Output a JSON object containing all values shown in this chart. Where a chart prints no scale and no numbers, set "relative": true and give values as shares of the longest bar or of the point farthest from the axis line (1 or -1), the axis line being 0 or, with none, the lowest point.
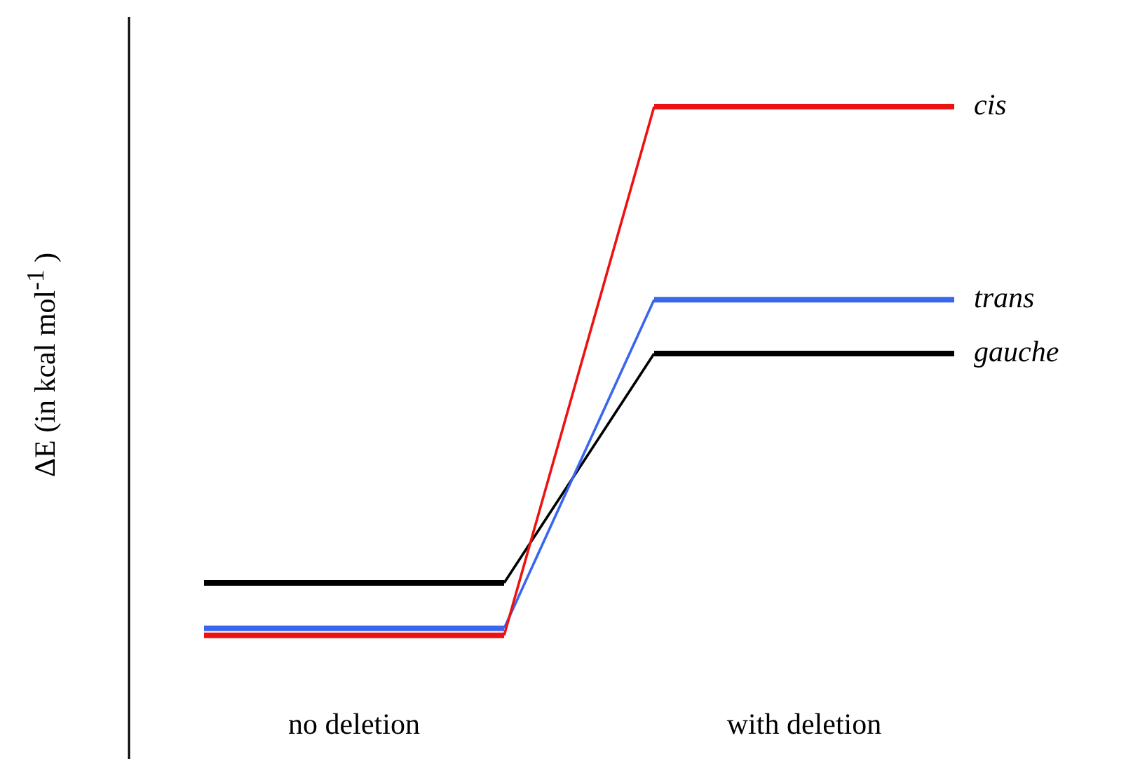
{
  "chart_data": {
    "type": "line",
    "relative": true,
    "ylabel": "ΔE  (in kcal mol$^{-1}$ )",
    "categories": [
      null,
      "no deletion",
      null,
      null,
      "with deletion",
      null
    ],
    "legend": false,
    "grid": false,
    "marker": "none",
    "series": [
      {
        "name": "cis",
        "color": "#ee1111",
        "values": [
          0,
          0,
          0,
          1,
          1,
          1
        ]
      },
      {
        "name": "trans",
        "color": "#3a66ee",
        "values": [
          0.013,
          0.013,
          0.013,
          0.635,
          0.635,
          0.635
        ]
      },
      {
        "name": "gauche",
        "color": "#000000",
        "values": [
          0.099,
          0.099,
          0.099,
          0.533,
          0.533,
          0.533
        ]
      }
    ]
  }
}
